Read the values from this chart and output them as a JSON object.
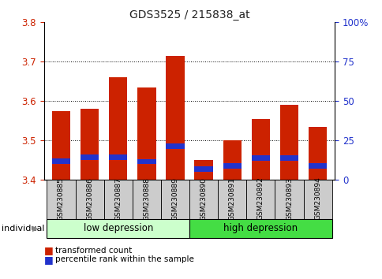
{
  "title": "GDS3525 / 215838_at",
  "samples": [
    "GSM230885",
    "GSM230886",
    "GSM230887",
    "GSM230888",
    "GSM230889",
    "GSM230890",
    "GSM230891",
    "GSM230892",
    "GSM230893",
    "GSM230894"
  ],
  "groups": [
    {
      "label": "low depression",
      "count": 5,
      "color": "#ccffcc"
    },
    {
      "label": "high depression",
      "count": 5,
      "color": "#44dd44"
    }
  ],
  "red_tops": [
    3.575,
    3.58,
    3.66,
    3.635,
    3.715,
    3.45,
    3.5,
    3.555,
    3.59,
    3.535
  ],
  "blue_bottoms": [
    3.44,
    3.45,
    3.45,
    3.44,
    3.478,
    3.42,
    3.428,
    3.448,
    3.448,
    3.428
  ],
  "blue_tops": [
    3.455,
    3.465,
    3.465,
    3.452,
    3.493,
    3.435,
    3.443,
    3.463,
    3.463,
    3.443
  ],
  "ymin": 3.4,
  "ymax": 3.8,
  "yticks_left": [
    3.4,
    3.5,
    3.6,
    3.7,
    3.8
  ],
  "yticks_right_pct": [
    0,
    25,
    50,
    75,
    100
  ],
  "bar_color_red": "#cc2200",
  "bar_color_blue": "#2233cc",
  "bar_bottom": 3.4,
  "legend_items": [
    "transformed count",
    "percentile rank within the sample"
  ],
  "individual_label": "individual",
  "left_tick_color": "#cc2200",
  "right_tick_color": "#2233cc",
  "bar_width": 0.65,
  "sample_box_color": "#cccccc",
  "title_fontsize": 10,
  "axis_fontsize": 8.5
}
